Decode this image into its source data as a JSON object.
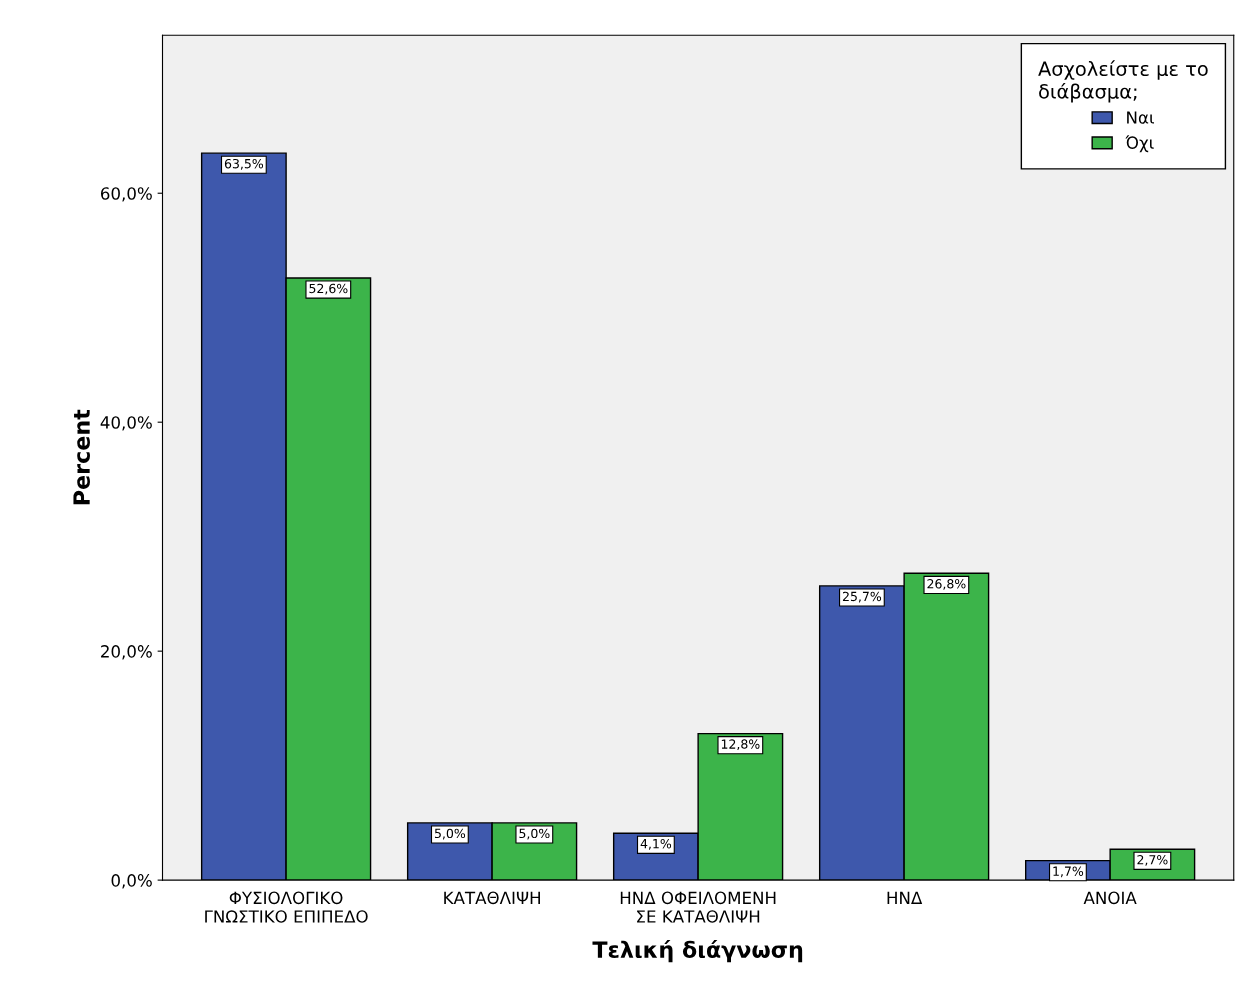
{
  "chart_data": {
    "type": "bar",
    "xlabel": "Τελική διάγνωση",
    "ylabel": "Percent",
    "legend_title": "Ασχολείστε με το\nδιάβασμα;",
    "categories": [
      "ΦΥΣΙΟΛΟΓΙΚΟ\nΓΝΩΣΤΙΚΟ ΕΠΙΠΕΔΟ",
      "ΚΑΤΑΘΛΙΨΗ",
      "ΗΝΔ ΟΦΕΙΛΟΜΕΝΗ\nΣΕ ΚΑΤΑΘΛΙΨΗ",
      "ΗΝΔ",
      "ΑΝΟΙΑ"
    ],
    "series": [
      {
        "name": "Ναι",
        "color": "#3e58ac",
        "values": [
          63.5,
          5.0,
          4.1,
          25.7,
          1.7
        ],
        "value_labels": [
          "63,5%",
          "5,0%",
          "4,1%",
          "25,7%",
          "1,7%"
        ]
      },
      {
        "name": "Όχι",
        "color": "#3cb44a",
        "values": [
          52.6,
          5.0,
          12.8,
          26.8,
          2.7
        ],
        "value_labels": [
          "52,6%",
          "5,0%",
          "12,8%",
          "26,8%",
          "2,7%"
        ]
      }
    ],
    "ylim": [
      0,
      73.8
    ],
    "yticks": [
      {
        "value": 0,
        "label": "0,0%"
      },
      {
        "value": 20,
        "label": "20,0%"
      },
      {
        "value": 40,
        "label": "40,0%"
      },
      {
        "value": 60,
        "label": "60,0%"
      }
    ],
    "grid": false,
    "legend": "top right"
  }
}
